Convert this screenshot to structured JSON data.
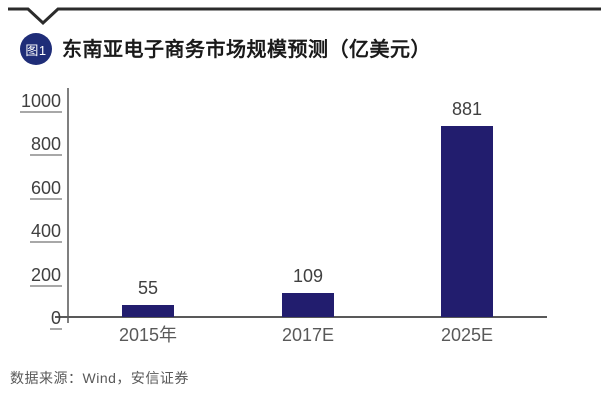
{
  "header": {
    "badge": "图1",
    "title": "东南亚电子商务市场规模预测（亿美元）"
  },
  "footer": {
    "source": "数据来源：Wind，安信证券"
  },
  "colors": {
    "bar": "#221d6e",
    "badge": "#1f2d78",
    "top_rule": "#2b2b2b",
    "y_axis": "#7f7f7f",
    "x_axis": "#595959",
    "tick_text": "#404040",
    "muted_text": "#595959",
    "tick_underline": "#a8a8a8"
  },
  "chart_data": {
    "type": "bar",
    "title": "东南亚电子商务市场规模预测（亿美元）",
    "categories": [
      "2015年",
      "2017E",
      "2025E"
    ],
    "values": [
      55,
      109,
      881
    ],
    "xlabel": "",
    "ylabel": "",
    "ylim": [
      0,
      1000
    ],
    "yticks": [
      0,
      200,
      400,
      600,
      800,
      1000
    ],
    "grid": false,
    "legend_position": "none",
    "data_labels_shown": true
  }
}
